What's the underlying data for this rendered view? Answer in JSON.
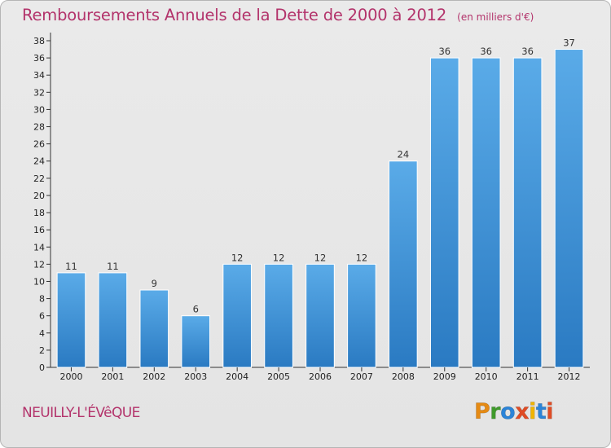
{
  "header": {
    "title": "Remboursements Annuels de la Dette de 2000 à 2012",
    "subtitle": "(en milliers d'€)"
  },
  "footer": {
    "commune": "NEUILLY-L'ÉVêQUE",
    "logo_letters": [
      "P",
      "r",
      "o",
      "x",
      "i",
      "t",
      "i"
    ]
  },
  "colors": {
    "title": "#b3336b",
    "bar_light": "#5aabe8",
    "bar_dark": "#2a7ac2",
    "logo": [
      "#e58a14",
      "#3f9a2b",
      "#2b84d8",
      "#e04c25",
      "#f0b400",
      "#2b84d8",
      "#e04c25"
    ]
  },
  "chart_data": {
    "type": "bar",
    "categories": [
      "2000",
      "2001",
      "2002",
      "2003",
      "2004",
      "2005",
      "2006",
      "2007",
      "2008",
      "2009",
      "2010",
      "2011",
      "2012"
    ],
    "values": [
      11,
      11,
      9,
      6,
      12,
      12,
      12,
      12,
      24,
      36,
      36,
      36,
      37
    ],
    "ylim": [
      0,
      38
    ],
    "yticks": [
      0,
      2,
      4,
      6,
      8,
      10,
      12,
      14,
      16,
      18,
      20,
      22,
      24,
      26,
      28,
      30,
      32,
      34,
      36,
      38
    ],
    "grid": false,
    "data_labels": true
  }
}
